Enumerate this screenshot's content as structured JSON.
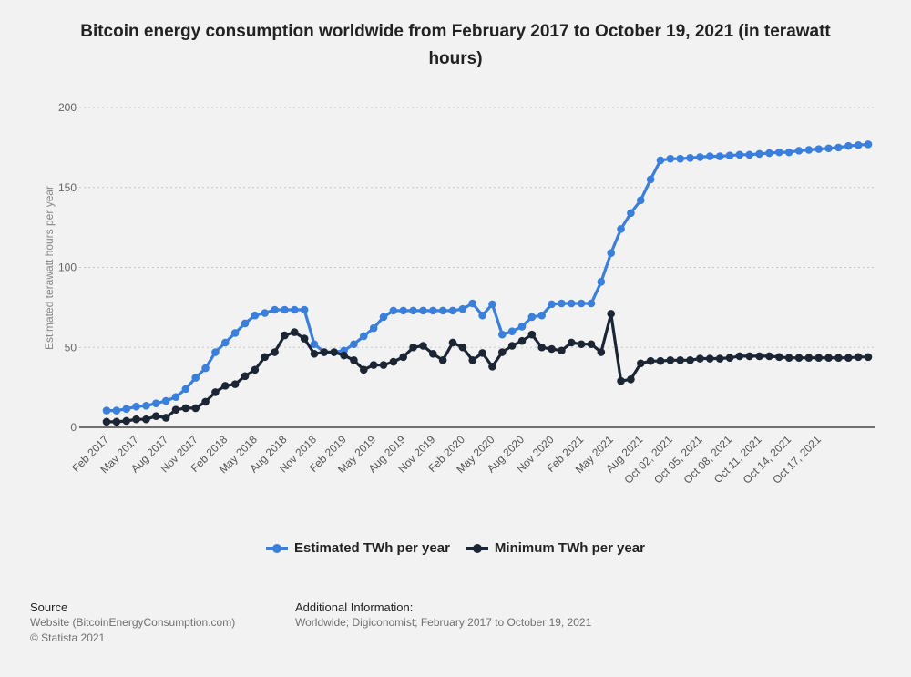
{
  "chart_data": {
    "type": "line",
    "title": "Bitcoin energy consumption worldwide from February 2017 to October 19, 2021 (in terawatt hours)",
    "ylabel": "Estimated terawatt hours per year",
    "xlabel": "",
    "ylim": [
      0,
      200
    ],
    "yticks": [
      0,
      50,
      100,
      150,
      200
    ],
    "grid": true,
    "legend_position": "bottom",
    "x_tick_labels": [
      "Feb 2017",
      "May 2017",
      "Aug 2017",
      "Nov 2017",
      "Feb 2018",
      "May 2018",
      "Aug 2018",
      "Nov 2018",
      "Feb 2019",
      "May 2019",
      "Aug 2019",
      "Nov 2019",
      "Feb 2020",
      "May 2020",
      "Aug 2020",
      "Nov 2020",
      "Feb 2021",
      "May 2021",
      "Aug 2021",
      "Oct 02, 2021",
      "Oct 05, 2021",
      "Oct 08, 2021",
      "Oct 11, 2021",
      "Oct 14, 2021",
      "Oct 17, 2021"
    ],
    "x_tick_every": 3,
    "series": [
      {
        "name": "Estimated TWh per year",
        "color": "#3a7fdb",
        "values": [
          10.5,
          10.5,
          11.5,
          13,
          13.5,
          15,
          16.5,
          19,
          24,
          31,
          37,
          47,
          53,
          59,
          65,
          70,
          71.5,
          73.5,
          73.5,
          73.5,
          73.5,
          52,
          47,
          47,
          48,
          52,
          57,
          62,
          69,
          73,
          73,
          73,
          73,
          73,
          73,
          73,
          74,
          77.5,
          70,
          77,
          58,
          60,
          63,
          69,
          70,
          77,
          77.5,
          77.5,
          77.5,
          77.5,
          91,
          109,
          124,
          134,
          142,
          155,
          167,
          168,
          168,
          168.5,
          169,
          169.5,
          169.5,
          170,
          170.5,
          170.5,
          171,
          171.5,
          172,
          172,
          173,
          173.5,
          174,
          174.5,
          175,
          176,
          176.5,
          177
        ]
      },
      {
        "name": "Minimum TWh per year",
        "color": "#1c2534",
        "values": [
          3.5,
          3.5,
          4,
          5,
          5,
          7,
          6,
          11,
          12,
          12,
          16,
          22,
          26,
          27,
          32,
          36,
          44,
          47,
          57.5,
          59.5,
          55.5,
          46,
          47,
          47,
          45,
          42,
          36,
          39,
          39,
          41,
          44,
          50,
          51,
          46,
          42,
          53,
          50,
          42,
          46.5,
          38,
          47,
          51,
          54,
          58,
          50,
          49,
          48,
          53,
          52,
          52,
          47,
          71,
          29,
          30,
          40,
          41.5,
          41.5,
          42,
          42,
          42,
          43,
          43,
          43,
          43.5,
          44.5,
          44.5,
          44.5,
          44.5,
          44,
          43.5,
          43.5,
          43.5,
          43.5,
          43.5,
          43.5,
          43.5,
          44,
          44
        ]
      }
    ]
  },
  "footer": {
    "source_heading": "Source",
    "source_line1": "Website (BitcoinEnergyConsumption.com)",
    "source_line2": "© Statista 2021",
    "info_heading": "Additional Information:",
    "info_line1": "Worldwide; Digiconomist; February 2017 to October 19, 2021"
  }
}
